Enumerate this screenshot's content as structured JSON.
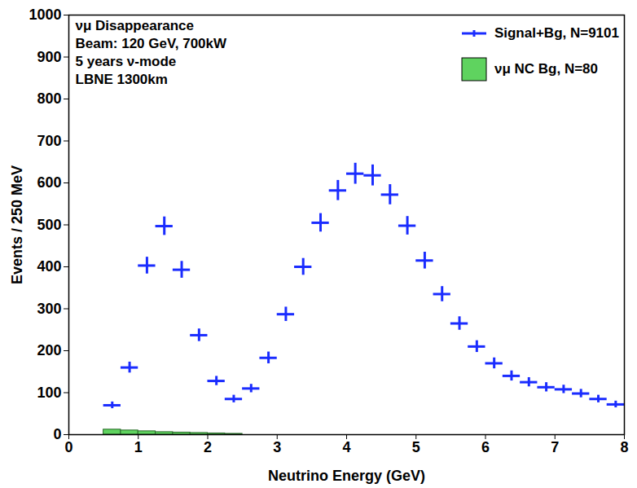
{
  "chart_data": {
    "type": "scatter",
    "xlabel": "Neutrino Energy (GeV)",
    "ylabel": "Events / 250 MeV",
    "annotations": [
      "νμ Disappearance",
      "Beam: 120 GeV, 700kW",
      "5 years ν-mode",
      "LBNE 1300km"
    ],
    "xlim": [
      0,
      8
    ],
    "ylim": [
      0,
      1000
    ],
    "xticks": [
      0,
      1,
      2,
      3,
      4,
      5,
      6,
      7,
      8
    ],
    "yticks": [
      0,
      100,
      200,
      300,
      400,
      500,
      600,
      700,
      800,
      900,
      1000
    ],
    "grid": false,
    "legend": "top-right",
    "series": [
      {
        "name": "Signal+Bg, N=9101",
        "type": "scatter",
        "marker": "cross",
        "color": "#1a2cff",
        "x": [
          0.625,
          0.875,
          1.125,
          1.375,
          1.625,
          1.875,
          2.125,
          2.375,
          2.625,
          2.875,
          3.125,
          3.375,
          3.625,
          3.875,
          4.125,
          4.375,
          4.625,
          4.875,
          5.125,
          5.375,
          5.625,
          5.875,
          6.125,
          6.375,
          6.625,
          6.875,
          7.125,
          7.375,
          7.625,
          7.875
        ],
        "values": [
          70,
          160,
          403,
          497,
          393,
          237,
          128,
          85,
          110,
          183,
          287,
          400,
          505,
          582,
          622,
          618,
          572,
          498,
          415,
          335,
          265,
          210,
          170,
          140,
          125,
          113,
          108,
          98,
          85,
          72
        ],
        "yerr": [
          8,
          13,
          20,
          22,
          20,
          15,
          11,
          9,
          10,
          14,
          17,
          20,
          22,
          24,
          25,
          25,
          24,
          22,
          20,
          18,
          16,
          14,
          13,
          12,
          11,
          11,
          10,
          10,
          9,
          8
        ]
      },
      {
        "name": "νμ NC Bg, N=80",
        "type": "histogram",
        "color": "#5fd35f",
        "bins": [
          0.5,
          0.75,
          1.0,
          1.25,
          1.5,
          1.75,
          2.0,
          2.25,
          2.5
        ],
        "values": [
          12,
          10,
          8,
          6,
          5,
          4,
          3,
          2
        ]
      }
    ]
  }
}
